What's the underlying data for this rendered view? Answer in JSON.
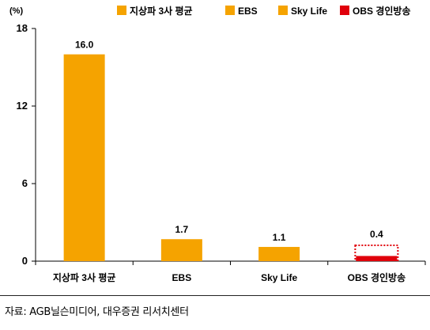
{
  "chart_data": {
    "type": "bar",
    "unit": "(%)",
    "categories": [
      "지상파 3사 평균",
      "EBS",
      "Sky Life",
      "OBS 경인방송"
    ],
    "values": [
      16.0,
      1.7,
      1.1,
      0.4
    ],
    "value_labels": [
      "16.0",
      "1.7",
      "1.1",
      "0.4"
    ],
    "colors": [
      "#F5A300",
      "#F5A300",
      "#F5A300",
      "#E0000B"
    ],
    "highlight_style": "dotted-outline",
    "ylim": [
      0,
      18
    ],
    "yticks": [
      0,
      6,
      12,
      18
    ],
    "grid": false,
    "legend": {
      "placement": "top",
      "entries": [
        {
          "label": "지상파 3사 평균",
          "color": "#F5A300"
        },
        {
          "label": "EBS",
          "color": "#F5A300"
        },
        {
          "label": "Sky Life",
          "color": "#F5A300"
        },
        {
          "label": "OBS 경인방송",
          "color": "#E0000B"
        }
      ]
    }
  },
  "source": "자료: AGB닐슨미디어, 대우증권 리서치센터"
}
